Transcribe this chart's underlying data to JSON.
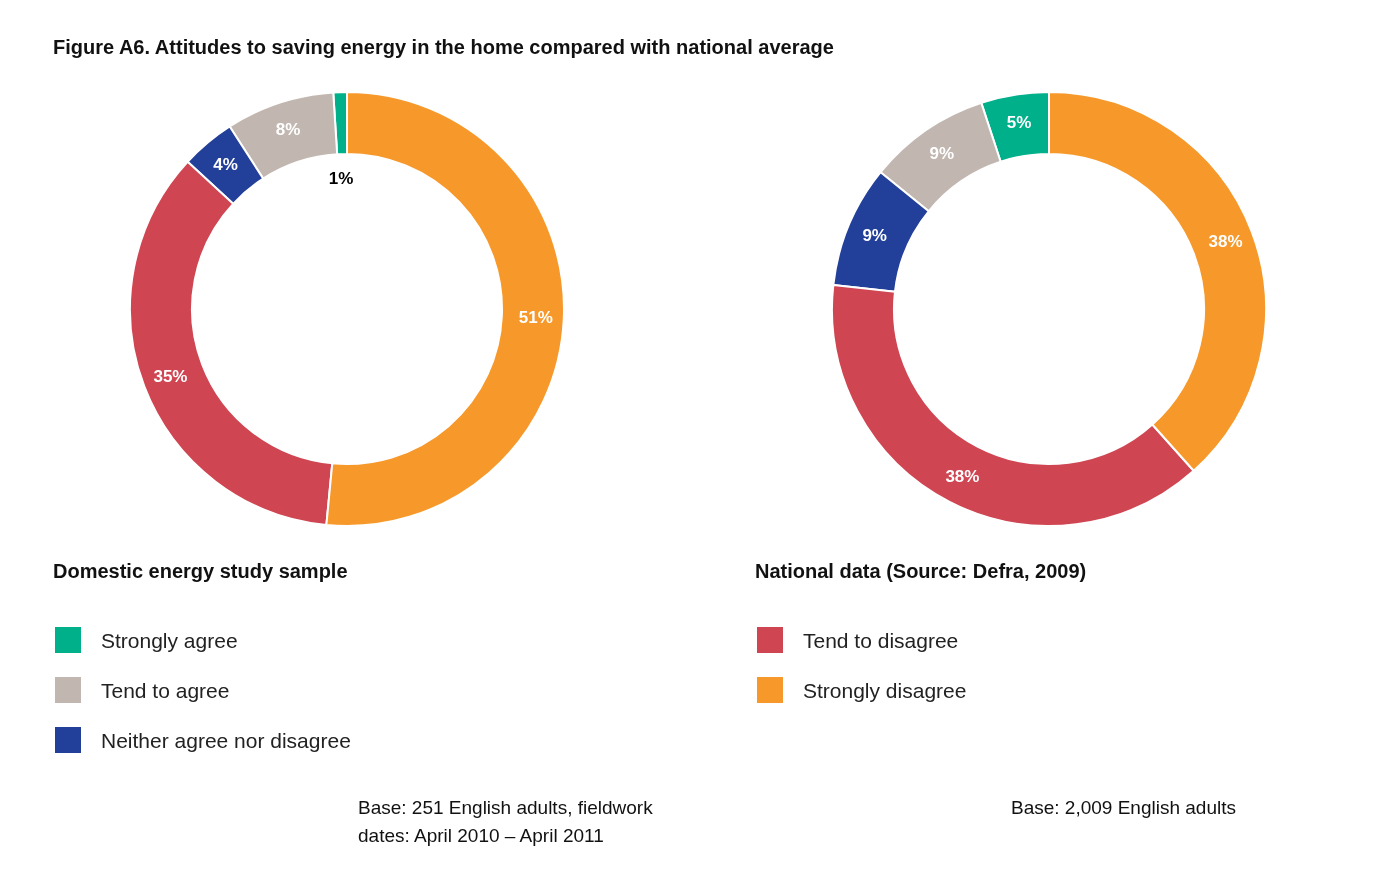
{
  "chart_data": {
    "type": "donut",
    "title": "Figure A6. Attitudes to saving energy in the home compared with national average",
    "categories": [
      "Strongly agree",
      "Tend to agree",
      "Neither agree nor disagree",
      "Tend to disagree",
      "Strongly disagree"
    ],
    "colors": [
      "#00b08a",
      "#c1b6b0",
      "#223f99",
      "#cf4552",
      "#f7982a"
    ],
    "legend": "bottom left",
    "series": [
      {
        "name": "Domestic energy study sample",
        "values": [
          1,
          8,
          4,
          35,
          51
        ],
        "value_labels": [
          "1%",
          "8%",
          "4%",
          "35%",
          "51%"
        ]
      },
      {
        "name": "National data (Source: Defra, 2009)",
        "values": [
          5,
          9,
          9,
          38,
          38
        ],
        "value_labels": [
          "5%",
          "9%",
          "9%",
          "38%",
          "38%"
        ]
      }
    ],
    "annotations": [
      "Base: 251 English adults, fieldwork dates: April 2010 – April 2011",
      "Base: 2,009 English adults"
    ]
  }
}
